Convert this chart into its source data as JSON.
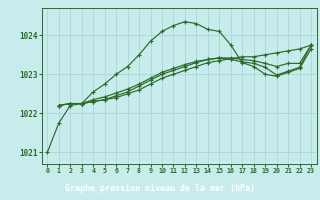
{
  "title": "Graphe pression niveau de la mer (hPa)",
  "background_color": "#c8ecec",
  "label_bg_color": "#3a7a3a",
  "grid_color": "#a8d8d8",
  "line_color": "#2a6b2a",
  "marker_color": "#2a6b2a",
  "xlim": [
    -0.5,
    23.5
  ],
  "ylim": [
    1020.7,
    1024.7
  ],
  "yticks": [
    1021,
    1022,
    1023,
    1024
  ],
  "xticks": [
    0,
    1,
    2,
    3,
    4,
    5,
    6,
    7,
    8,
    9,
    10,
    11,
    12,
    13,
    14,
    15,
    16,
    17,
    18,
    19,
    20,
    21,
    22,
    23
  ],
  "series": [
    [
      1021.0,
      1021.75,
      1022.2,
      1022.25,
      1022.55,
      1022.75,
      1023.0,
      1023.2,
      1023.5,
      1023.85,
      1024.1,
      1024.25,
      1024.35,
      1024.3,
      1024.15,
      1024.1,
      1023.75,
      1023.3,
      1023.2,
      1023.0,
      1022.95,
      1023.05,
      1023.15,
      1023.65
    ],
    [
      null,
      null,
      null,
      1022.25,
      null,
      null,
      null,
      null,
      null,
      null,
      null,
      null,
      null,
      null,
      null,
      null,
      null,
      null,
      null,
      null,
      null,
      null,
      null,
      null
    ],
    [
      null,
      1022.2,
      1022.25,
      1022.25,
      1022.3,
      1022.35,
      1022.4,
      1022.5,
      1022.6,
      1022.75,
      1022.9,
      1023.0,
      1023.1,
      1023.2,
      1023.3,
      1023.35,
      1023.4,
      1023.45,
      1023.45,
      1023.5,
      1023.55,
      1023.6,
      1023.65,
      1023.75
    ],
    [
      null,
      1022.2,
      1022.25,
      1022.25,
      1022.3,
      1022.35,
      1022.45,
      1022.55,
      1022.7,
      1022.85,
      1023.0,
      1023.1,
      1023.2,
      1023.3,
      1023.38,
      1023.42,
      1023.42,
      1023.38,
      1023.35,
      1023.28,
      1023.2,
      1023.28,
      1023.28,
      1023.75
    ],
    [
      null,
      1022.2,
      1022.25,
      1022.25,
      1022.35,
      1022.42,
      1022.52,
      1022.62,
      1022.75,
      1022.9,
      1023.05,
      1023.15,
      1023.25,
      1023.33,
      1023.38,
      1023.42,
      1023.38,
      1023.32,
      1023.28,
      1023.18,
      1022.98,
      1023.08,
      1023.18,
      1023.75
    ]
  ]
}
